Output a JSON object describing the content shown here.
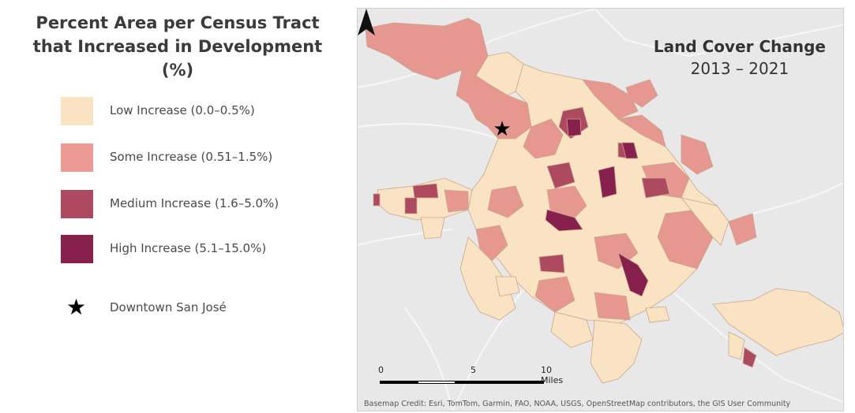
{
  "legend": {
    "title": "Percent Area per Census Tract that Increased in Development (%)",
    "items": [
      {
        "label": "Low Increase (0.0–0.5%)",
        "color": "#fae3c2"
      },
      {
        "label": "Some Increase (0.51–1.5%)",
        "color": "#ec9a94"
      },
      {
        "label": "Medium Increase (1.6–5.0%)",
        "color": "#ad4a60"
      },
      {
        "label": "High Increase (5.1–15.0%)",
        "color": "#87204c"
      }
    ],
    "star_label": "Downtown San José"
  },
  "map": {
    "title": "Land Cover Change",
    "subtitle": "2013 – 2021",
    "scale": {
      "label_0": "0",
      "label_5": "5",
      "label_10": "10 Miles"
    },
    "north_icon": "north-arrow-icon",
    "credit": "Basemap Credit: Esri, TomTom, Garmin, FAO, NOAA, USGS, OpenStreetMap contributors, the GIS User Community",
    "landmark_icon": "star-icon"
  }
}
